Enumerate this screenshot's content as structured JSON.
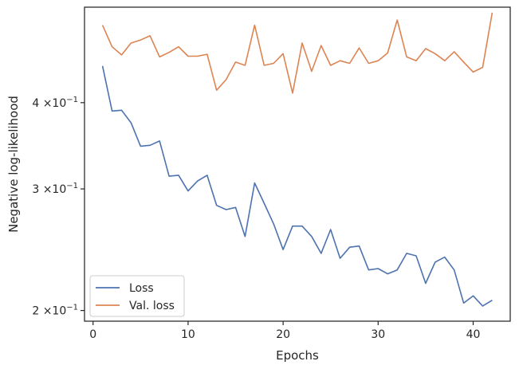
{
  "chart_data": {
    "type": "line",
    "title": "",
    "xlabel": "Epochs",
    "ylabel": "Negative log-likelihood",
    "yscale": "log",
    "xlim": [
      -0.9,
      43.9
    ],
    "ylim": [
      0.193,
      0.55
    ],
    "xticks": [
      0,
      10,
      20,
      30,
      40
    ],
    "yticks": [
      {
        "value": 0.4,
        "mantissa": "4",
        "exponent": "−1"
      },
      {
        "value": 0.3,
        "mantissa": "3",
        "exponent": "−1"
      },
      {
        "value": 0.2,
        "mantissa": "2",
        "exponent": "−1"
      }
    ],
    "tick_times": "×10",
    "grid": false,
    "legend_position": "lower-left",
    "x": [
      1,
      2,
      3,
      4,
      5,
      6,
      7,
      8,
      9,
      10,
      11,
      12,
      13,
      14,
      15,
      16,
      17,
      18,
      19,
      20,
      21,
      22,
      23,
      24,
      25,
      26,
      27,
      28,
      29,
      30,
      31,
      32,
      33,
      34,
      35,
      36,
      37,
      38,
      39,
      40,
      41,
      42
    ],
    "series": [
      {
        "name": "Loss",
        "color": "#4c72b0",
        "values": [
          0.452,
          0.389,
          0.39,
          0.374,
          0.346,
          0.347,
          0.352,
          0.313,
          0.314,
          0.298,
          0.308,
          0.314,
          0.284,
          0.28,
          0.282,
          0.256,
          0.306,
          0.286,
          0.267,
          0.245,
          0.265,
          0.265,
          0.256,
          0.242,
          0.262,
          0.238,
          0.247,
          0.248,
          0.229,
          0.23,
          0.226,
          0.229,
          0.242,
          0.24,
          0.219,
          0.235,
          0.239,
          0.229,
          0.205,
          0.21,
          0.203,
          0.207
        ]
      },
      {
        "name": "Val. loss",
        "color": "#dd8452",
        "values": [
          0.518,
          0.482,
          0.469,
          0.488,
          0.493,
          0.5,
          0.466,
          0.473,
          0.482,
          0.467,
          0.467,
          0.47,
          0.417,
          0.432,
          0.458,
          0.453,
          0.518,
          0.453,
          0.456,
          0.471,
          0.413,
          0.488,
          0.444,
          0.484,
          0.453,
          0.46,
          0.456,
          0.48,
          0.456,
          0.46,
          0.472,
          0.527,
          0.466,
          0.46,
          0.479,
          0.471,
          0.46,
          0.474,
          0.458,
          0.443,
          0.45,
          0.54
        ]
      }
    ]
  }
}
